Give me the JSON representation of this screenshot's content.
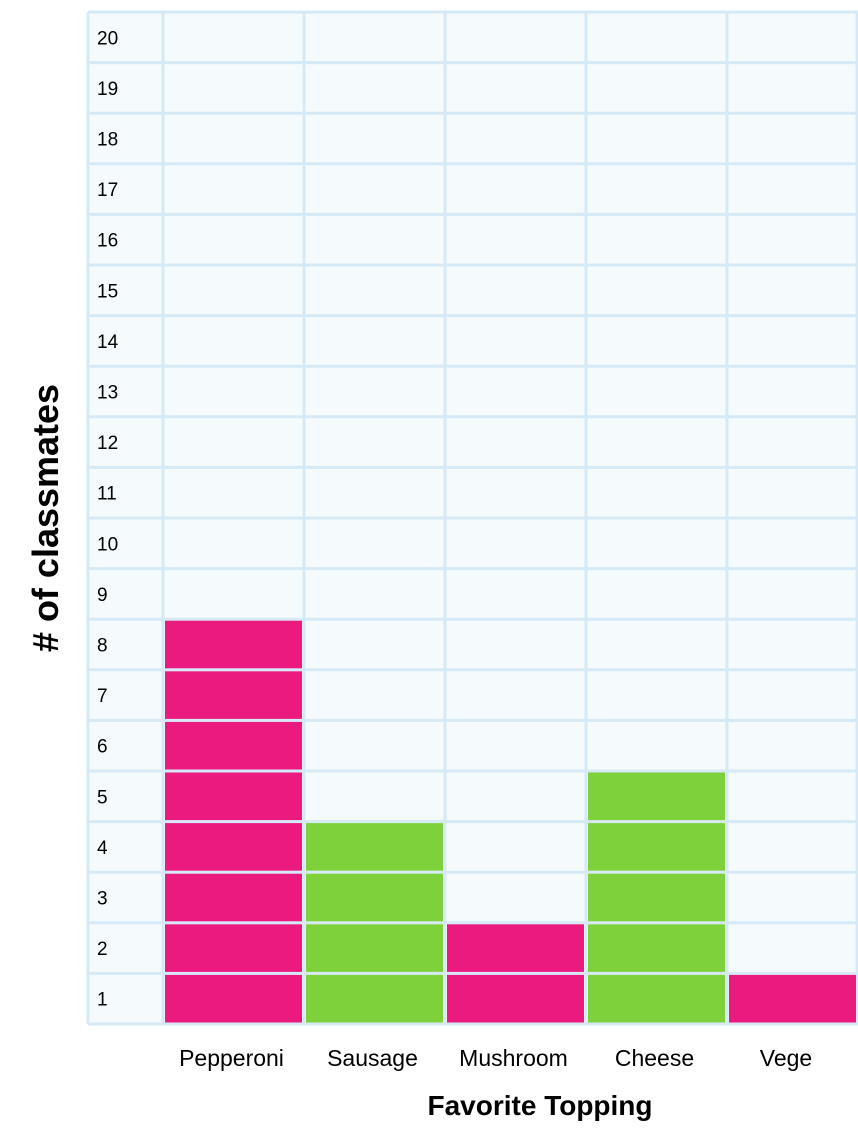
{
  "chart_data": {
    "type": "bar",
    "categories": [
      "Pepperoni",
      "Sausage",
      "Mushroom",
      "Cheese",
      "Vege"
    ],
    "values": [
      8,
      4,
      2,
      5,
      1
    ],
    "bar_colors": [
      "#ea1a7f",
      "#7fd13b",
      "#ea1a7f",
      "#7fd13b",
      "#ea1a7f"
    ],
    "title": "",
    "xlabel": "Favorite Topping",
    "ylabel": "# of classmates",
    "y_tick_labels": [
      "1",
      "2",
      "3",
      "4",
      "5",
      "6",
      "7",
      "8",
      "9",
      "10",
      "11",
      "12",
      "13",
      "14",
      "15",
      "16",
      "17",
      "18",
      "19",
      "20"
    ],
    "ylim": [
      0,
      20
    ],
    "grid": true,
    "grid_color": "#d6e9f7",
    "background_color": "#f5fafd",
    "legend": "none"
  }
}
